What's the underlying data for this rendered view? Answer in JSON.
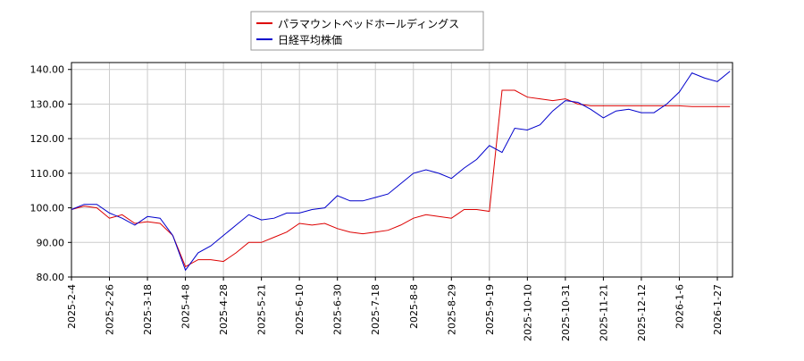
{
  "chart_data": {
    "type": "line",
    "categories": [
      "2025-2-4",
      null,
      null,
      "2025-2-26",
      null,
      null,
      "2025-3-18",
      null,
      null,
      "2025-4-8",
      null,
      null,
      "2025-4-28",
      null,
      null,
      "2025-5-21",
      null,
      null,
      "2025-6-10",
      null,
      null,
      "2025-6-30",
      null,
      null,
      "2025-7-18",
      null,
      null,
      "2025-8-8",
      null,
      null,
      "2025-8-29",
      null,
      null,
      "2025-9-19",
      null,
      null,
      "2025-10-10",
      null,
      null,
      "2025-10-31",
      null,
      null,
      "2025-11-21",
      null,
      null,
      "2025-12-12",
      null,
      null,
      "2026-1-6",
      null,
      null,
      "2026-1-27",
      null
    ],
    "series": [
      {
        "name": "パラマウントベッドホールディングス",
        "color": "#dd0000",
        "values": [
          99.5,
          100.5,
          100,
          97,
          98,
          95.5,
          96,
          95.5,
          92,
          83,
          85,
          85,
          84.5,
          87,
          90,
          90,
          91.5,
          93,
          95.5,
          95,
          95.5,
          94,
          93,
          92.5,
          93,
          93.5,
          95,
          97,
          98,
          97.5,
          97,
          99.5,
          99.5,
          99,
          134,
          134,
          132,
          131.5,
          131,
          131.5,
          130,
          129.5,
          129.5,
          129.5,
          129.5,
          129.5,
          129.5,
          129.5,
          129.5,
          129.3,
          129.3,
          129.3,
          129.3
        ]
      },
      {
        "name": "日経平均株価",
        "color": "#0000cc",
        "values": [
          99.5,
          101,
          101,
          98.5,
          97,
          95,
          97.5,
          97,
          92,
          82,
          87,
          89,
          92,
          95,
          98,
          96.5,
          97,
          98.5,
          98.5,
          99.5,
          100,
          103.5,
          102,
          102,
          103,
          104,
          107,
          110,
          111,
          110,
          108.5,
          111.5,
          114,
          118,
          116,
          123,
          122.5,
          124,
          128,
          131,
          130.5,
          128.5,
          126,
          128,
          128.5,
          127.5,
          127.5,
          130,
          133.5,
          139,
          137.5,
          136.5,
          139.5
        ]
      }
    ],
    "ylim": [
      80,
      142
    ],
    "yticks": [
      {
        "value": 80,
        "label": "80.00"
      },
      {
        "value": 90,
        "label": "90.00"
      },
      {
        "value": 100,
        "label": "100.00"
      },
      {
        "value": 110,
        "label": "110.00"
      },
      {
        "value": 120,
        "label": "120.00"
      },
      {
        "value": 130,
        "label": "130.00"
      },
      {
        "value": 140,
        "label": "140.00"
      }
    ],
    "grid": true,
    "legend": "top"
  }
}
